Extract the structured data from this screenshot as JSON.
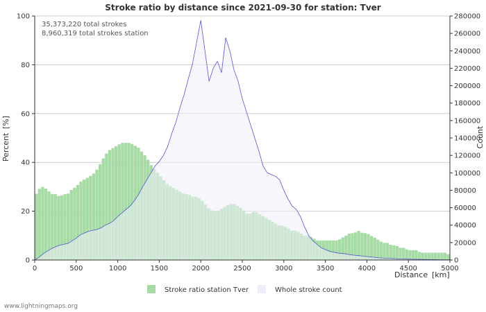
{
  "chart_data": {
    "type": "area",
    "title": "Stroke ratio by distance since 2021-09-30 for station: Tver",
    "xlabel": "Distance",
    "xunit": "[km]",
    "ylabel_left": "Percent",
    "ylabel_left_unit": "[%]",
    "ylabel_right": "Count",
    "xlim": [
      0,
      5000
    ],
    "ylim_left": [
      0,
      100
    ],
    "ylim_right": [
      0,
      280000
    ],
    "x_ticks": [
      "0",
      "500",
      "1000",
      "1500",
      "2000",
      "2500",
      "3000",
      "3500",
      "4000",
      "4500",
      "5000"
    ],
    "y_left_ticks": [
      "0",
      "20",
      "40",
      "60",
      "80",
      "100"
    ],
    "y_right_ticks": [
      "0",
      "20000",
      "40000",
      "60000",
      "80000",
      "100000",
      "120000",
      "140000",
      "160000",
      "180000",
      "200000",
      "220000",
      "240000",
      "260000",
      "280000"
    ],
    "annotations": [
      "35,373,220 total strokes",
      "8,960,319 total strokes station"
    ],
    "legend_position": "bottom-center",
    "series": [
      {
        "name": "Stroke ratio station Tver",
        "axis": "left",
        "color": "#a6dba6",
        "x": [
          0,
          50,
          100,
          150,
          200,
          250,
          300,
          350,
          400,
          450,
          500,
          550,
          600,
          650,
          700,
          750,
          800,
          850,
          900,
          950,
          1000,
          1050,
          1100,
          1150,
          1200,
          1250,
          1300,
          1350,
          1400,
          1450,
          1500,
          1550,
          1600,
          1650,
          1700,
          1750,
          1800,
          1850,
          1900,
          1950,
          2000,
          2050,
          2100,
          2150,
          2200,
          2250,
          2300,
          2350,
          2400,
          2450,
          2500,
          2550,
          2600,
          2650,
          2700,
          2750,
          2800,
          2850,
          2900,
          2950,
          3000,
          3050,
          3100,
          3150,
          3200,
          3250,
          3300,
          3350,
          3400,
          3450,
          3500,
          3550,
          3600,
          3650,
          3700,
          3750,
          3800,
          3850,
          3900,
          3950,
          4000,
          4050,
          4100,
          4150,
          4200,
          4250,
          4300,
          4350,
          4400,
          4450,
          4500,
          4550,
          4600,
          4650,
          4700,
          4750,
          4800,
          4850,
          4900,
          4950,
          5000
        ],
        "values": [
          26,
          29,
          30,
          29,
          27,
          27,
          26,
          27,
          27,
          29,
          30,
          32,
          33,
          34,
          35,
          37,
          40,
          43,
          45,
          46,
          47,
          48,
          48,
          48,
          47,
          46,
          44,
          42,
          39,
          37,
          35,
          33,
          31,
          30,
          29,
          28,
          27,
          27,
          26,
          26,
          25,
          23,
          21,
          20,
          20,
          21,
          22,
          23,
          23,
          22,
          21,
          19,
          19,
          20,
          19,
          18,
          17,
          16,
          15,
          14,
          14,
          13,
          12,
          12,
          11,
          10,
          10,
          9,
          8,
          8,
          8,
          8,
          8,
          8,
          9,
          10,
          11,
          11,
          12,
          11,
          11,
          10,
          9,
          8,
          7,
          7,
          6,
          6,
          5,
          5,
          4,
          4,
          4,
          3,
          3,
          3,
          3,
          3,
          3,
          3,
          2
        ]
      },
      {
        "name": "Whole stroke count",
        "axis": "right",
        "color": "#eeeefa",
        "line_color": "#5555cc",
        "x": [
          0,
          50,
          100,
          150,
          200,
          250,
          300,
          350,
          400,
          450,
          500,
          550,
          600,
          650,
          700,
          750,
          800,
          850,
          900,
          950,
          1000,
          1050,
          1100,
          1150,
          1200,
          1250,
          1300,
          1350,
          1400,
          1450,
          1500,
          1550,
          1600,
          1650,
          1700,
          1750,
          1800,
          1850,
          1900,
          1950,
          2000,
          2050,
          2100,
          2150,
          2200,
          2250,
          2300,
          2350,
          2400,
          2450,
          2500,
          2550,
          2600,
          2650,
          2700,
          2750,
          2800,
          2850,
          2900,
          2950,
          3000,
          3050,
          3100,
          3150,
          3200,
          3250,
          3300,
          3350,
          3400,
          3450,
          3500,
          3550,
          3600,
          3650,
          3700,
          3750,
          3800,
          3850,
          3900,
          3950,
          4000,
          4050,
          4100,
          4150,
          4200,
          4250,
          4300,
          4350,
          4400,
          4450,
          4500,
          4550,
          4600,
          4650,
          4700,
          4750,
          4800,
          4850,
          4900,
          4950,
          5000
        ],
        "values": [
          0,
          3000,
          7000,
          10000,
          13000,
          15000,
          17000,
          18000,
          19000,
          22000,
          25000,
          29000,
          31000,
          33000,
          34000,
          35000,
          37000,
          40000,
          42000,
          45000,
          50000,
          54000,
          58000,
          62000,
          68000,
          75000,
          84000,
          92000,
          100000,
          108000,
          113000,
          120000,
          130000,
          145000,
          158000,
          175000,
          190000,
          208000,
          225000,
          250000,
          275000,
          240000,
          205000,
          220000,
          228000,
          215000,
          255000,
          240000,
          218000,
          205000,
          185000,
          170000,
          155000,
          140000,
          125000,
          108000,
          100000,
          98000,
          96000,
          92000,
          80000,
          70000,
          62000,
          58000,
          50000,
          38000,
          28000,
          22000,
          18000,
          14000,
          12000,
          10000,
          9000,
          8000,
          7500,
          7000,
          6000,
          5500,
          5000,
          4500,
          4000,
          3500,
          3000,
          2500,
          2200,
          2000,
          1800,
          1500,
          1300,
          1200,
          1000,
          900,
          800,
          700,
          600,
          500,
          450,
          400,
          350,
          300,
          250
        ]
      }
    ]
  },
  "footer": {
    "credit": "www.lightningmaps.org"
  }
}
